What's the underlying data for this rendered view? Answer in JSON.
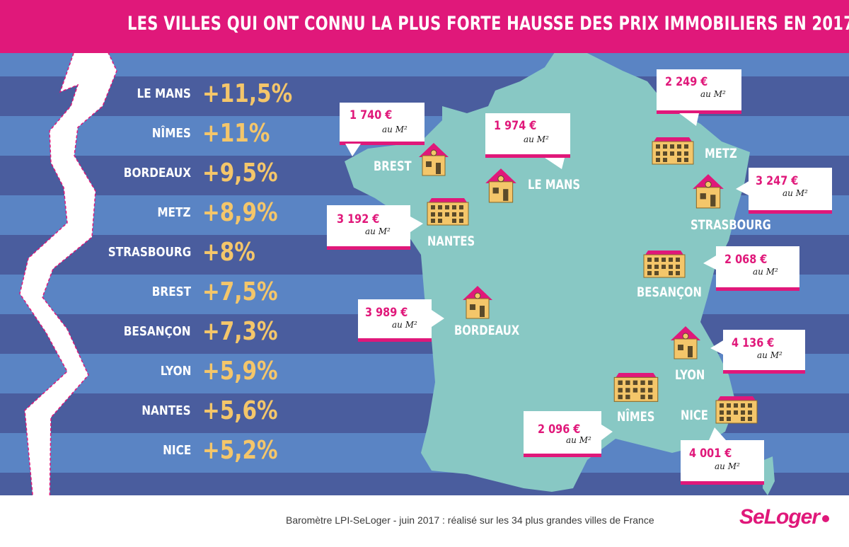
{
  "title": "LES VILLES QUI ONT CONNU LA PLUS FORTE HAUSSE DES PRIX IMMOBILIERS EN 2017",
  "ranking": [
    {
      "city": "LE MANS",
      "change": "+11,5%"
    },
    {
      "city": "NÎMES",
      "change": "+11%"
    },
    {
      "city": "BORDEAUX",
      "change": "+9,5%"
    },
    {
      "city": "METZ",
      "change": "+8,9%"
    },
    {
      "city": "STRASBOURG",
      "change": "+8%"
    },
    {
      "city": "BREST",
      "change": "+7,5%"
    },
    {
      "city": "BESANÇON",
      "change": "+7,3%"
    },
    {
      "city": "LYON",
      "change": "+5,9%"
    },
    {
      "city": "NANTES",
      "change": "+5,6%"
    },
    {
      "city": "NICE",
      "change": "+5,2%"
    }
  ],
  "map": {
    "brest": {
      "name": "BREST",
      "price": "1 740 €",
      "unit": "au M²",
      "icon": "house-icon"
    },
    "le_mans": {
      "name": "LE MANS",
      "price": "1 974 €",
      "unit": "au M²",
      "icon": "house-icon"
    },
    "metz": {
      "name": "METZ",
      "price": "2 249 €",
      "unit": "au M²",
      "icon": "apartment-building-icon"
    },
    "strasbourg": {
      "name": "STRASBOURG",
      "price": "3 247 €",
      "unit": "au M²",
      "icon": "house-icon"
    },
    "nantes": {
      "name": "NANTES",
      "price": "3 192 €",
      "unit": "au M²",
      "icon": "apartment-building-icon"
    },
    "besancon": {
      "name": "BESANÇON",
      "price": "2 068 €",
      "unit": "au M²",
      "icon": "apartment-building-icon"
    },
    "bordeaux": {
      "name": "BORDEAUX",
      "price": "3 989 €",
      "unit": "au M²",
      "icon": "house-icon"
    },
    "lyon": {
      "name": "LYON",
      "price": "4 136 €",
      "unit": "au M²",
      "icon": "house-icon"
    },
    "nimes": {
      "name": "NÎMES",
      "price": "2 096 €",
      "unit": "au M²",
      "icon": "apartment-building-icon"
    },
    "nice": {
      "name": "NICE",
      "price": "4 001 €",
      "unit": "au M²",
      "icon": "apartment-building-icon"
    }
  },
  "footer": {
    "source": "Baromètre LPI-SeLoger - juin 2017 : réalisé sur les 34 plus grandes villes de France",
    "logo": "SeLoger"
  },
  "colors": {
    "pink": "#e0187a",
    "gold": "#f4c66a",
    "map": "#88c8c4",
    "stripe_dark": "#4a5d9e",
    "stripe_light": "#5a84c4"
  }
}
